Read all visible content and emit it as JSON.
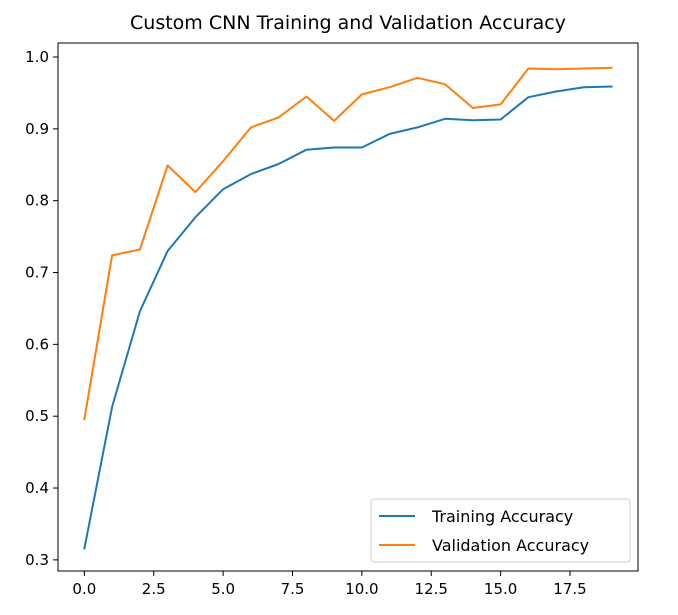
{
  "chart_data": {
    "type": "line",
    "title": "Custom CNN Training and Validation Accuracy",
    "xlabel": "",
    "ylabel": "",
    "xlim": [
      -0.95,
      19.95
    ],
    "ylim": [
      0.2845,
      1.0195
    ],
    "x_ticks": [
      0,
      2.5,
      5,
      7.5,
      10,
      12.5,
      15,
      17.5
    ],
    "x_tick_labels": [
      "0.0",
      "2.5",
      "5.0",
      "7.5",
      "10.0",
      "12.5",
      "15.0",
      "17.5"
    ],
    "y_ticks": [
      0.3,
      0.4,
      0.5,
      0.6,
      0.7,
      0.8,
      0.9,
      1.0
    ],
    "y_tick_labels": [
      "0.3",
      "0.4",
      "0.5",
      "0.6",
      "0.7",
      "0.8",
      "0.9",
      "1.0"
    ],
    "grid": false,
    "legend_position": "lower-right",
    "x": [
      0,
      1,
      2,
      3,
      4,
      5,
      6,
      7,
      8,
      9,
      10,
      11,
      12,
      13,
      14,
      15,
      16,
      17,
      18,
      19
    ],
    "series": [
      {
        "name": "Training Accuracy",
        "color": "#1f77b4",
        "values": [
          0.316,
          0.513,
          0.646,
          0.73,
          0.777,
          0.816,
          0.837,
          0.851,
          0.871,
          0.874,
          0.874,
          0.893,
          0.902,
          0.914,
          0.912,
          0.913,
          0.944,
          0.952,
          0.958,
          0.959
        ]
      },
      {
        "name": "Validation Accuracy",
        "color": "#ff7f0e",
        "values": [
          0.496,
          0.724,
          0.732,
          0.849,
          0.812,
          0.855,
          0.902,
          0.916,
          0.945,
          0.911,
          0.948,
          0.958,
          0.971,
          0.962,
          0.929,
          0.934,
          0.984,
          0.983,
          0.984,
          0.985
        ]
      }
    ]
  }
}
